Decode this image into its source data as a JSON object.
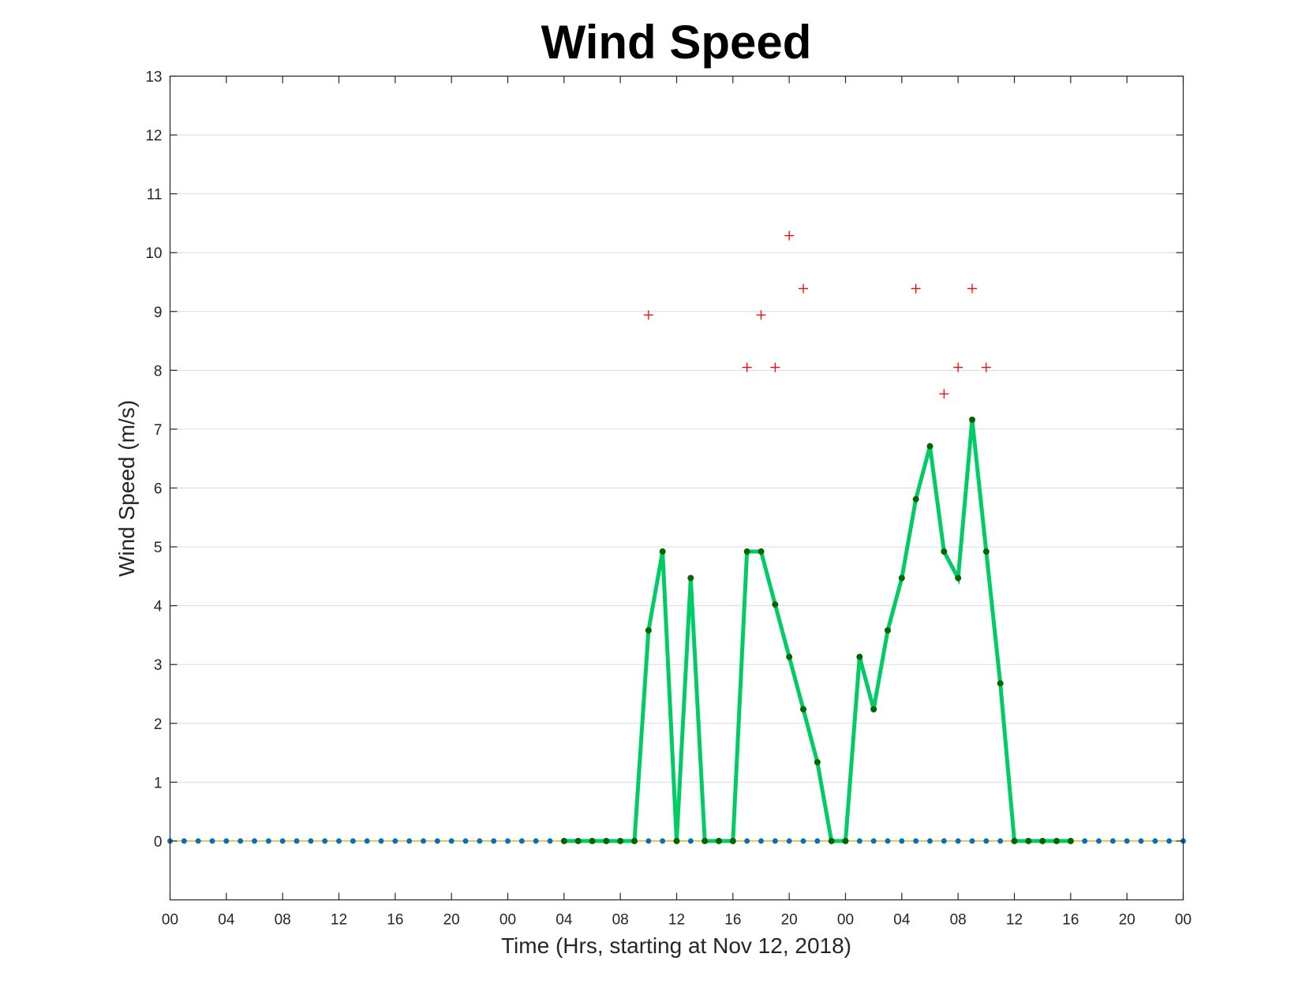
{
  "chart_data": {
    "type": "line",
    "title": "Wind Speed",
    "xlabel": "Time (Hrs, starting at Nov 12, 2018)",
    "ylabel": "Wind Speed (m/s)",
    "ylim": [
      -1,
      13
    ],
    "xlim": [
      0,
      72
    ],
    "grid": "horizontal",
    "yticks": [
      0,
      1,
      2,
      3,
      4,
      5,
      6,
      7,
      8,
      9,
      10,
      11,
      12,
      13
    ],
    "xticks": [
      0,
      4,
      8,
      12,
      16,
      20,
      24,
      28,
      32,
      36,
      40,
      44,
      48,
      52,
      56,
      60,
      64,
      68,
      72
    ],
    "xtick_labels": [
      "00",
      "04",
      "08",
      "12",
      "16",
      "20",
      "00",
      "04",
      "08",
      "12",
      "16",
      "20",
      "00",
      "04",
      "08",
      "12",
      "16",
      "20",
      "00"
    ],
    "series": [
      {
        "type": "line",
        "color": "#0072bd",
        "line_color": "#edb120",
        "marker": "dot",
        "x": [
          0,
          1,
          2,
          3,
          4,
          5,
          6,
          7,
          8,
          9,
          10,
          11,
          12,
          13,
          14,
          15,
          16,
          17,
          18,
          19,
          20,
          21,
          22,
          23,
          24,
          25,
          26,
          27,
          28,
          29,
          30,
          31,
          32,
          33,
          34,
          35,
          36,
          37,
          38,
          39,
          40,
          41,
          42,
          43,
          44,
          45,
          46,
          47,
          48,
          49,
          50,
          51,
          52,
          53,
          54,
          55,
          56,
          57,
          58,
          59,
          60,
          61,
          62,
          63,
          64,
          65,
          66,
          67,
          68,
          69,
          70,
          71,
          72
        ],
        "values": [
          0,
          0,
          0,
          0,
          0,
          0,
          0,
          0,
          0,
          0,
          0,
          0,
          0,
          0,
          0,
          0,
          0,
          0,
          0,
          0,
          0,
          0,
          0,
          0,
          0,
          0,
          0,
          0,
          0,
          0,
          0,
          0,
          0,
          0,
          0,
          0,
          0,
          0,
          0,
          0,
          0,
          0,
          0,
          0,
          0,
          0,
          0,
          0,
          0,
          0,
          0,
          0,
          0,
          0,
          0,
          0,
          0,
          0,
          0,
          0,
          0,
          0,
          0,
          0,
          0,
          0,
          0,
          0,
          0,
          0,
          0,
          0,
          0
        ]
      },
      {
        "type": "line",
        "color": "#00cc66",
        "marker_color": "#006400",
        "marker": "dot",
        "x": [
          28,
          29,
          30,
          31,
          32,
          33,
          34,
          35,
          36,
          37,
          38,
          39,
          40,
          41,
          42,
          43,
          44,
          45,
          46,
          47,
          48,
          49,
          50,
          51,
          52,
          53,
          54,
          55,
          56,
          57,
          58,
          59,
          60,
          61,
          62,
          63,
          64
        ],
        "values": [
          0,
          0,
          0,
          0,
          0,
          0,
          3.58,
          4.92,
          0,
          4.47,
          0,
          0,
          0,
          4.92,
          4.92,
          4.02,
          3.13,
          2.24,
          1.34,
          0,
          0,
          3.13,
          2.24,
          3.58,
          4.47,
          5.81,
          6.71,
          4.92,
          4.47,
          7.16,
          4.92,
          2.68,
          0,
          0,
          0,
          0,
          0
        ]
      },
      {
        "type": "scatter",
        "color": "#ff0000",
        "marker": "plus",
        "x": [
          34,
          41,
          42,
          43,
          44,
          45,
          53,
          55,
          56,
          57,
          58
        ],
        "values": [
          8.94,
          8.05,
          8.94,
          8.05,
          10.29,
          9.39,
          9.39,
          7.6,
          8.05,
          9.39,
          8.05
        ]
      }
    ]
  }
}
